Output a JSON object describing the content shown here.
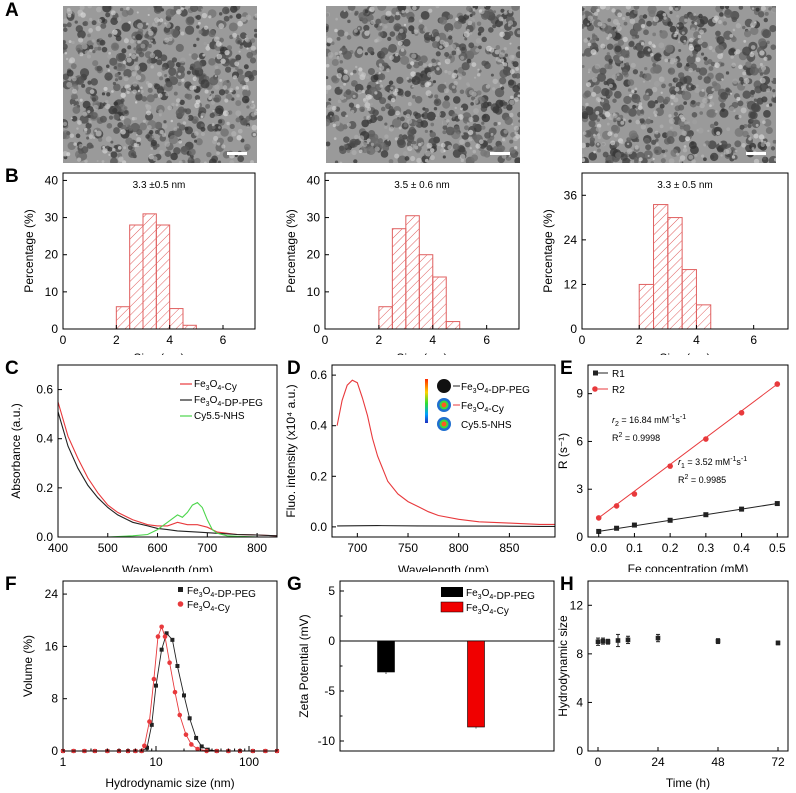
{
  "panel_letters": {
    "A": "A",
    "B": "B",
    "C": "C",
    "D": "D",
    "E": "E",
    "F": "F",
    "G": "G",
    "H": "H"
  },
  "colors": {
    "red": "#e8393c",
    "black": "#222222",
    "green": "#4cd64c",
    "bar_red": "#f00000",
    "hatch": "#e06060"
  },
  "chart_data": [
    {
      "id": "B1",
      "type": "bar",
      "title": "3.3 ±0.5 nm",
      "xlabel": "Size (nm)",
      "ylabel": "Percentage (%)",
      "xlim": [
        0,
        7.2
      ],
      "ylim": [
        0,
        42
      ],
      "xticks": [
        0,
        2,
        4,
        6
      ],
      "yticks": [
        0,
        10,
        20,
        30,
        40
      ],
      "bins": [
        {
          "x0": 2.0,
          "x1": 2.5,
          "v": 6
        },
        {
          "x0": 2.5,
          "x1": 3.0,
          "v": 28
        },
        {
          "x0": 3.0,
          "x1": 3.5,
          "v": 31
        },
        {
          "x0": 3.5,
          "x1": 4.0,
          "v": 28
        },
        {
          "x0": 4.0,
          "x1": 4.5,
          "v": 5.5
        },
        {
          "x0": 4.5,
          "x1": 5.0,
          "v": 1
        }
      ]
    },
    {
      "id": "B2",
      "type": "bar",
      "title": "3.5 ± 0.6 nm",
      "xlabel": "Size (nm)",
      "ylabel": "Percentage (%)",
      "xlim": [
        0,
        7.2
      ],
      "ylim": [
        0,
        42
      ],
      "xticks": [
        0,
        2,
        4,
        6
      ],
      "yticks": [
        0,
        10,
        20,
        30,
        40
      ],
      "bins": [
        {
          "x0": 2.0,
          "x1": 2.5,
          "v": 6
        },
        {
          "x0": 2.5,
          "x1": 3.0,
          "v": 27
        },
        {
          "x0": 3.0,
          "x1": 3.5,
          "v": 30.5
        },
        {
          "x0": 3.5,
          "x1": 4.0,
          "v": 20
        },
        {
          "x0": 4.0,
          "x1": 4.5,
          "v": 14
        },
        {
          "x0": 4.5,
          "x1": 5.0,
          "v": 2
        }
      ]
    },
    {
      "id": "B3",
      "type": "bar",
      "title": "3.3 ± 0.5 nm",
      "xlabel": "Size (nm)",
      "ylabel": "Percentage (%)",
      "xlim": [
        0,
        7.2
      ],
      "ylim": [
        0,
        42
      ],
      "xticks": [
        0,
        2,
        4,
        6
      ],
      "yticks": [
        0,
        12,
        24,
        36
      ],
      "bins": [
        {
          "x0": 2.0,
          "x1": 2.5,
          "v": 12
        },
        {
          "x0": 2.5,
          "x1": 3.0,
          "v": 33.5
        },
        {
          "x0": 3.0,
          "x1": 3.5,
          "v": 30
        },
        {
          "x0": 3.5,
          "x1": 4.0,
          "v": 16
        },
        {
          "x0": 4.0,
          "x1": 4.5,
          "v": 6.5
        }
      ]
    },
    {
      "id": "C",
      "type": "line",
      "xlabel": "Wavelength (nm)",
      "ylabel": "Absorbance (a.u.)",
      "xlim": [
        400,
        840
      ],
      "ylim": [
        0,
        0.7
      ],
      "xticks": [
        400,
        500,
        600,
        700,
        800
      ],
      "yticks": [
        0.0,
        0.2,
        0.4,
        0.6
      ],
      "series": [
        {
          "name": "Fe3O4-Cy",
          "color": "#e8393c",
          "x": [
            400,
            420,
            440,
            460,
            480,
            500,
            520,
            550,
            580,
            600,
            620,
            640,
            660,
            680,
            700,
            720,
            760,
            800,
            840
          ],
          "y": [
            0.55,
            0.41,
            0.32,
            0.24,
            0.18,
            0.13,
            0.1,
            0.07,
            0.05,
            0.045,
            0.045,
            0.06,
            0.05,
            0.05,
            0.04,
            0.02,
            0.01,
            0.008,
            0.005
          ]
        },
        {
          "name": "Fe3O4-DP-PEG",
          "color": "#222222",
          "x": [
            400,
            420,
            440,
            460,
            480,
            500,
            520,
            550,
            580,
            600,
            620,
            640,
            680,
            720,
            760,
            800,
            840
          ],
          "y": [
            0.51,
            0.37,
            0.28,
            0.21,
            0.16,
            0.12,
            0.09,
            0.06,
            0.045,
            0.035,
            0.03,
            0.025,
            0.02,
            0.015,
            0.01,
            0.008,
            0.005
          ]
        },
        {
          "name": "Cy5.5-NHS",
          "color": "#4cd64c",
          "x": [
            400,
            450,
            500,
            550,
            580,
            600,
            620,
            640,
            650,
            660,
            670,
            680,
            690,
            700,
            710,
            720,
            740,
            760,
            800,
            840
          ],
          "y": [
            0.0,
            0.0,
            0.0,
            0.005,
            0.01,
            0.03,
            0.06,
            0.09,
            0.08,
            0.1,
            0.13,
            0.14,
            0.12,
            0.07,
            0.03,
            0.015,
            0.005,
            0.003,
            0.0,
            0.0
          ]
        }
      ]
    },
    {
      "id": "D",
      "type": "line",
      "xlabel": "Wavelength (nm)",
      "ylabel": "Fluo. intensity (x10⁴ a.u.)",
      "xlim": [
        675,
        895
      ],
      "ylim": [
        -0.04,
        0.64
      ],
      "xticks": [
        700,
        750,
        800,
        850
      ],
      "yticks": [
        0.0,
        0.2,
        0.4,
        0.6
      ],
      "series": [
        {
          "name": "Fe3O4-DP-PEG",
          "color": "#222222",
          "x": [
            680,
            720,
            760,
            800,
            840,
            880,
            895
          ],
          "y": [
            0.004,
            0.005,
            0.004,
            0.003,
            0.003,
            0.002,
            0.002
          ]
        },
        {
          "name": "Fe3O4-Cy",
          "color": "#e8393c",
          "x": [
            680,
            685,
            690,
            695,
            700,
            705,
            710,
            715,
            720,
            730,
            740,
            750,
            760,
            770,
            780,
            800,
            820,
            850,
            880,
            895
          ],
          "y": [
            0.4,
            0.5,
            0.56,
            0.58,
            0.57,
            0.51,
            0.44,
            0.35,
            0.28,
            0.18,
            0.13,
            0.1,
            0.08,
            0.06,
            0.045,
            0.03,
            0.02,
            0.015,
            0.01,
            0.01
          ]
        }
      ],
      "inset_legend": [
        "Fe3O4-DP-PEG",
        "Fe3O4-Cy",
        "Cy5.5-NHS"
      ]
    },
    {
      "id": "E",
      "type": "scatter",
      "xlabel": "Fe concentration (mM)",
      "ylabel": "R (s⁻¹)",
      "xlim": [
        -0.03,
        0.53
      ],
      "ylim": [
        0,
        10.8
      ],
      "xticks": [
        0.0,
        0.1,
        0.2,
        0.3,
        0.4,
        0.5
      ],
      "yticks": [
        0,
        3,
        6,
        9
      ],
      "series": [
        {
          "name": "R1",
          "color": "#222222",
          "marker": "square",
          "x": [
            0,
            0.05,
            0.1,
            0.2,
            0.3,
            0.4,
            0.5
          ],
          "y": [
            0.35,
            0.55,
            0.75,
            1.05,
            1.4,
            1.75,
            2.1
          ]
        },
        {
          "name": "R2",
          "color": "#e8393c",
          "marker": "circle",
          "x": [
            0,
            0.05,
            0.1,
            0.2,
            0.3,
            0.4,
            0.5
          ],
          "y": [
            1.2,
            1.95,
            2.7,
            4.45,
            6.15,
            7.8,
            9.6
          ]
        }
      ],
      "annotations": {
        "r2_prefix": "r",
        "r2_sub": "2",
        "r2_text": " = 16.84 mM",
        "r2_sup": "-1",
        "r2_tail": "s",
        "r2_tail_sup": "-1",
        "r2_R2_label": "R",
        "r2_R2_sup": "2",
        "r2_R2_val": " = 0.9998",
        "r1_prefix": "r",
        "r1_sub": "1",
        "r1_text": " = 3.52 mM",
        "r1_sup": "-1",
        "r1_tail": "s",
        "r1_tail_sup": "-1",
        "r1_R2_label": "R",
        "r1_R2_sup": "2",
        "r1_R2_val": " = 0.9985"
      }
    },
    {
      "id": "F",
      "type": "scatter",
      "xlabel": "Hydrodynamic size (nm)",
      "ylabel": "Volume (%)",
      "xscale": "log",
      "xlim": [
        1,
        200
      ],
      "ylim": [
        0,
        26
      ],
      "xticks": [
        1,
        10,
        100
      ],
      "yticks": [
        0,
        8,
        16,
        24
      ],
      "series": [
        {
          "name": "Fe3O4-DP-PEG",
          "color": "#222222",
          "marker": "square",
          "x": [
            1,
            1.3,
            1.7,
            2.2,
            3,
            4,
            5,
            6,
            7,
            8,
            9,
            10,
            11.5,
            13,
            15,
            17,
            20,
            23,
            27,
            31,
            36,
            45,
            60,
            80,
            110,
            150,
            200
          ],
          "y": [
            0,
            0,
            0,
            0,
            0,
            0,
            0,
            0,
            0,
            0.5,
            4,
            10,
            15.5,
            18,
            17,
            13,
            8.5,
            5,
            2,
            0.7,
            0.2,
            0,
            0,
            0,
            0,
            0,
            0
          ]
        },
        {
          "name": "Fe3O4-Cy",
          "color": "#e8393c",
          "marker": "circle",
          "x": [
            1,
            1.3,
            1.7,
            2.2,
            3,
            4,
            5,
            6,
            7,
            7.5,
            8.5,
            9.5,
            10.5,
            11.5,
            12.5,
            14,
            16,
            18,
            21,
            24,
            28,
            35,
            45,
            60,
            80,
            110,
            150,
            200
          ],
          "y": [
            0,
            0,
            0,
            0,
            0,
            0,
            0,
            0,
            0,
            0.8,
            4.5,
            11,
            17.5,
            19,
            17.5,
            13.5,
            9,
            5.5,
            2.5,
            1,
            0.3,
            0,
            0,
            0,
            0,
            0,
            0,
            0
          ]
        }
      ]
    },
    {
      "id": "G",
      "type": "bar",
      "xlabel": "",
      "ylabel": "Zeta Potential (mV)",
      "ylim": [
        -11,
        6
      ],
      "yticks": [
        5,
        0,
        -5,
        -10
      ],
      "series": [
        {
          "name": "Fe3O4-DP-PEG",
          "color": "#000000",
          "value": -3.1,
          "error": 0.2
        },
        {
          "name": "Fe3O4-Cy",
          "color": "#f00000",
          "value": -8.6,
          "error": 0.15
        }
      ]
    },
    {
      "id": "H",
      "type": "scatter",
      "xlabel": "Time (h)",
      "ylabel": "Hydrodynamic size",
      "xlim": [
        -4,
        76
      ],
      "ylim": [
        0,
        14
      ],
      "xticks": [
        0,
        24,
        48,
        72
      ],
      "yticks": [
        0,
        4,
        8,
        12
      ],
      "series": [
        {
          "name": "size",
          "color": "#222222",
          "marker": "square",
          "x": [
            0,
            2,
            4,
            8,
            12,
            24,
            48,
            72
          ],
          "y": [
            9.0,
            9.05,
            9.0,
            9.1,
            9.15,
            9.3,
            9.05,
            8.9
          ],
          "err": [
            0.3,
            0.25,
            0.2,
            0.5,
            0.3,
            0.3,
            0.2,
            0.15
          ]
        }
      ]
    }
  ]
}
